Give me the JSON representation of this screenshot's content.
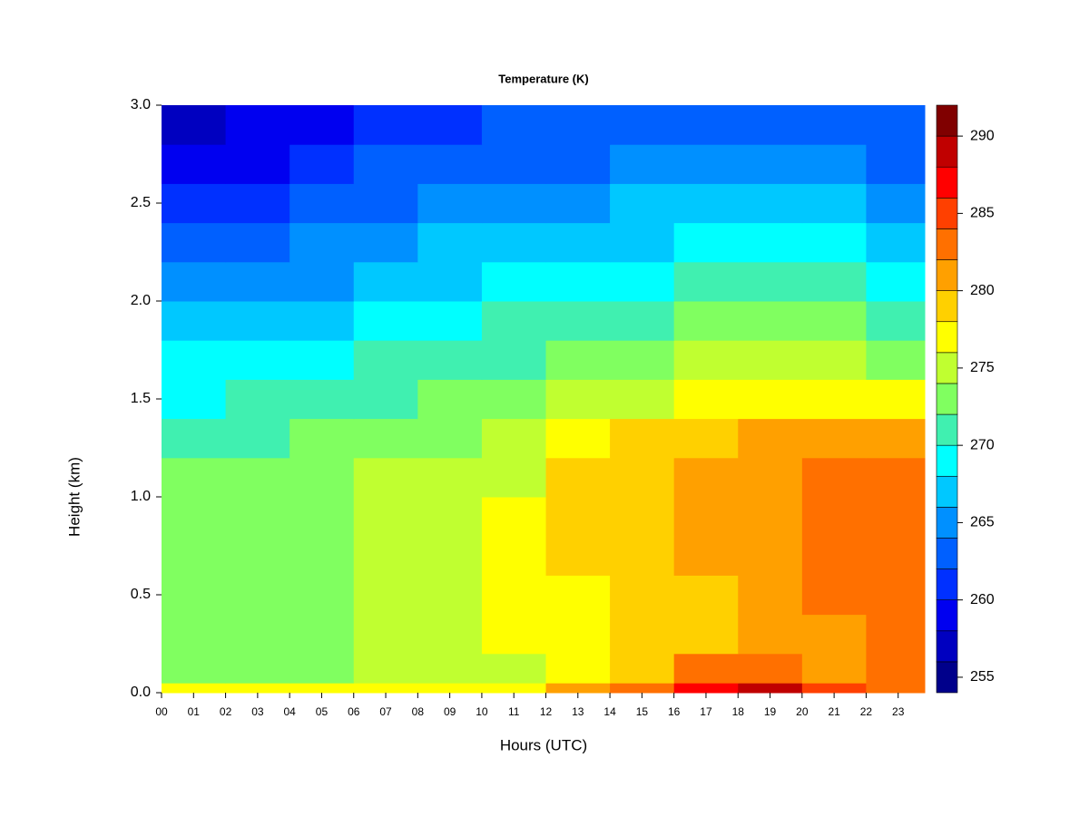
{
  "chart_data": {
    "type": "heatmap",
    "title": "Temperature (K)",
    "xlabel": "Hours (UTC)",
    "ylabel": "Height (km)",
    "x": [
      0,
      2,
      4,
      6,
      8,
      10,
      12,
      14,
      16,
      18,
      20,
      22
    ],
    "y": [
      0,
      0.05,
      0.2,
      0.4,
      0.6,
      0.8,
      1.0,
      1.2,
      1.4,
      1.6,
      1.8,
      2.0,
      2.2,
      2.4,
      2.6,
      2.8
    ],
    "z": [
      [
        277,
        276,
        277,
        277,
        277,
        277,
        281,
        283,
        287,
        288,
        285,
        283
      ],
      [
        273,
        273,
        273,
        274,
        275,
        275,
        277,
        279,
        282,
        283,
        281,
        282
      ],
      [
        272,
        272,
        273,
        274,
        275,
        276,
        276,
        278,
        279,
        280,
        281,
        282
      ],
      [
        272,
        272,
        273,
        274,
        275,
        277,
        277,
        278,
        279,
        280,
        283,
        283
      ],
      [
        272,
        272,
        273,
        274,
        275,
        277,
        278,
        279,
        280,
        281,
        283,
        283
      ],
      [
        272,
        272,
        273,
        274,
        275,
        276,
        278,
        279,
        280,
        281,
        283,
        282
      ],
      [
        272,
        272,
        273,
        274,
        274,
        275,
        278,
        279,
        280,
        281,
        282,
        282
      ],
      [
        271,
        271,
        272,
        273,
        273,
        274,
        276,
        278,
        279,
        280,
        280,
        280
      ],
      [
        269,
        270,
        270,
        271,
        272,
        273,
        274,
        275,
        276,
        277,
        277,
        276
      ],
      [
        268,
        269,
        269,
        270,
        271,
        271,
        272,
        273,
        274,
        275,
        275,
        273
      ],
      [
        266,
        267,
        267,
        268,
        269,
        270,
        270,
        271,
        272,
        272,
        272,
        271
      ],
      [
        264,
        265,
        265,
        266,
        267,
        268,
        268,
        269,
        270,
        270,
        270,
        268
      ],
      [
        262,
        263,
        264,
        265,
        266,
        266,
        267,
        267,
        268,
        268,
        268,
        267
      ],
      [
        260,
        261,
        262,
        263,
        264,
        264,
        265,
        266,
        266,
        266,
        266,
        265
      ],
      [
        258,
        259,
        260,
        262,
        262,
        263,
        263,
        264,
        264,
        264,
        264,
        263
      ],
      [
        256,
        258,
        259,
        261,
        261,
        262,
        262,
        262,
        263,
        263,
        263,
        262
      ]
    ],
    "xlim": [
      0,
      23.83
    ],
    "ylim": [
      0,
      3
    ],
    "xticks": [
      {
        "value": 0,
        "label": "00"
      },
      {
        "value": 1,
        "label": "01"
      },
      {
        "value": 2,
        "label": "02"
      },
      {
        "value": 3,
        "label": "03"
      },
      {
        "value": 4,
        "label": "04"
      },
      {
        "value": 5,
        "label": "05"
      },
      {
        "value": 6,
        "label": "06"
      },
      {
        "value": 7,
        "label": "07"
      },
      {
        "value": 8,
        "label": "08"
      },
      {
        "value": 9,
        "label": "09"
      },
      10,
      11,
      12,
      13,
      14,
      15,
      16,
      17,
      18,
      19,
      20,
      21,
      22,
      23
    ],
    "yticks": [
      {
        "value": 0,
        "label": "0.0"
      },
      0.5,
      {
        "value": 1,
        "label": "1.0"
      },
      1.5,
      {
        "value": 2,
        "label": "2.0"
      },
      2.5,
      {
        "value": 3,
        "label": "3.0"
      }
    ],
    "levels": [
      254,
      256,
      258,
      260,
      262,
      264,
      266,
      268,
      270,
      272,
      274,
      276,
      278,
      280,
      282,
      284,
      286,
      288,
      290,
      292
    ],
    "colors": [
      "#00008b",
      "#0000c0",
      "#0000f0",
      "#0030ff",
      "#0060ff",
      "#0090ff",
      "#00c8ff",
      "#00ffff",
      "#40f0b0",
      "#80ff60",
      "#c0ff30",
      "#ffff00",
      "#ffd000",
      "#ffa000",
      "#ff7000",
      "#ff4000",
      "#ff0000",
      "#c00000",
      "#800000"
    ],
    "colorbar_ticks": [
      255,
      260,
      265,
      270,
      275,
      280,
      285,
      290
    ]
  }
}
